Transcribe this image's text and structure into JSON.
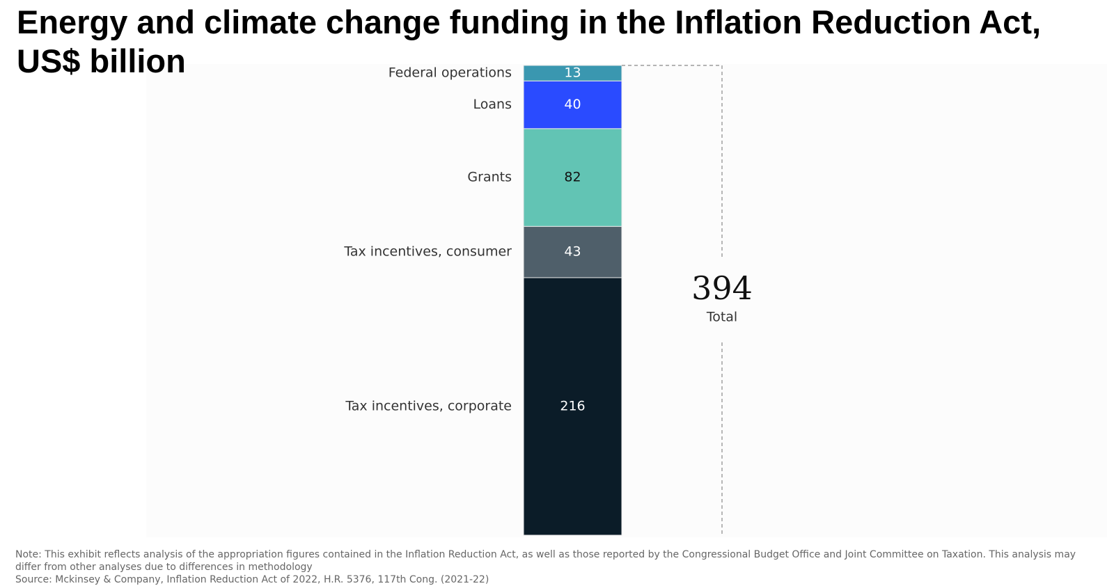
{
  "chart_data": {
    "type": "stacked-bar",
    "title": "Energy and climate change funding in the Inflation Reduction Act, US$ billion",
    "categories": [
      "Federal operations",
      "Loans",
      "Grants",
      "Tax incentives, consumer",
      "Tax incentives, corporate"
    ],
    "values": [
      13,
      40,
      82,
      43,
      216
    ],
    "colors": [
      "#3a97b0",
      "#2a4bff",
      "#62c4b4",
      "#4f5f6a",
      "#0b1c28"
    ],
    "label_colors": [
      "#ffffff",
      "#ffffff",
      "#111111",
      "#ffffff",
      "#ffffff"
    ],
    "total": {
      "value": 394,
      "label": "Total"
    },
    "note": "Note: This exhibit reflects analysis of the appropriation figures contained in the Inflation Reduction Act, as well as those reported by the Congressional Budget Office and Joint Committee on Taxation. This analysis may differ from other analyses due to differences in methodology",
    "source": "Source: Mckinsey & Company,  Inflation Reduction Act of 2022, H.R. 5376, 117th Cong. (2021-22)"
  }
}
